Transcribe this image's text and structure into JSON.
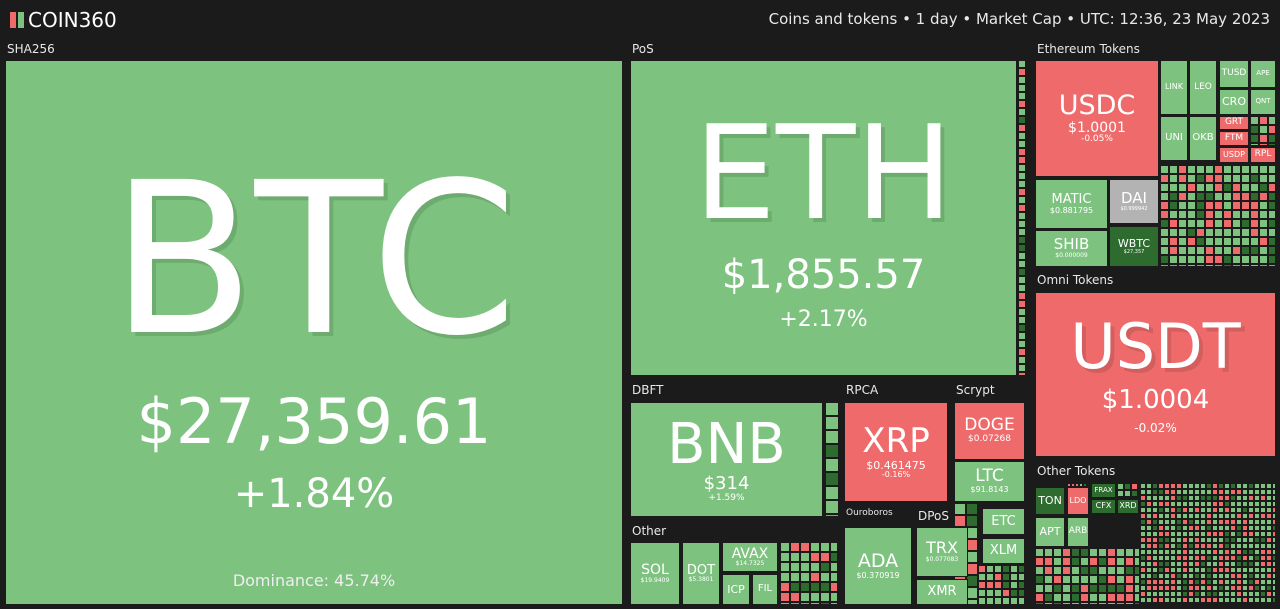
{
  "header": {
    "logo": "COIN360",
    "settings": "Coins and tokens • 1 day • Market Cap • UTC: 12:36, 23 May 2023"
  },
  "groups": [
    "SHA256",
    "PoS",
    "Ethereum Tokens",
    "Omni Tokens",
    "DBFT",
    "RPCA",
    "Scrypt",
    "Other",
    "Ouroboros",
    "DPoS",
    "Other Tokens"
  ],
  "tiles": [
    {
      "symbol": "BTC",
      "price": "$27,359.61",
      "change": "+1.84%",
      "dominance": "Dominance: 45.74%"
    },
    {
      "symbol": "ETH",
      "price": "$1,855.57",
      "change": "+2.17%"
    },
    {
      "symbol": "BNB",
      "price": "$314",
      "change": "+1.59%"
    },
    {
      "symbol": "XRP",
      "price": "$0.461475",
      "change": "-0.16%"
    },
    {
      "symbol": "DOGE",
      "price": "$0.07268"
    },
    {
      "symbol": "LTC",
      "price": "$91.8143"
    },
    {
      "symbol": "SOL",
      "price": "$19.9409"
    },
    {
      "symbol": "DOT",
      "price": "$5.3801"
    },
    {
      "symbol": "AVAX",
      "price": "$14.7325"
    },
    {
      "symbol": "ICP"
    },
    {
      "symbol": "FIL"
    },
    {
      "symbol": "ADA",
      "price": "$0.370919"
    },
    {
      "symbol": "TRX",
      "price": "$0.077083"
    },
    {
      "symbol": "XMR"
    },
    {
      "symbol": "ETC"
    },
    {
      "symbol": "XLM"
    },
    {
      "symbol": "USDC",
      "price": "$1.0001",
      "change": "-0.05%"
    },
    {
      "symbol": "MATIC",
      "price": "$0.881795"
    },
    {
      "symbol": "DAI",
      "price": "$0.999942"
    },
    {
      "symbol": "SHIB",
      "price": "$0.000009"
    },
    {
      "symbol": "WBTC",
      "price": "$27,357"
    },
    {
      "symbol": "LINK"
    },
    {
      "symbol": "LEO"
    },
    {
      "symbol": "TUSD"
    },
    {
      "symbol": "CRO"
    },
    {
      "symbol": "UNI"
    },
    {
      "symbol": "OKB"
    },
    {
      "symbol": "GRT"
    },
    {
      "symbol": "FTM"
    },
    {
      "symbol": "USDP"
    },
    {
      "symbol": "RPL"
    },
    {
      "symbol": "APE"
    },
    {
      "symbol": "QNT"
    },
    {
      "symbol": "USDT",
      "price": "$1.0004",
      "change": "-0.02%"
    },
    {
      "symbol": "TON"
    },
    {
      "symbol": "LDO"
    },
    {
      "symbol": "FRAX"
    },
    {
      "symbol": "CFX"
    },
    {
      "symbol": "XRD"
    },
    {
      "symbol": "APT"
    },
    {
      "symbol": "ARB"
    }
  ]
}
